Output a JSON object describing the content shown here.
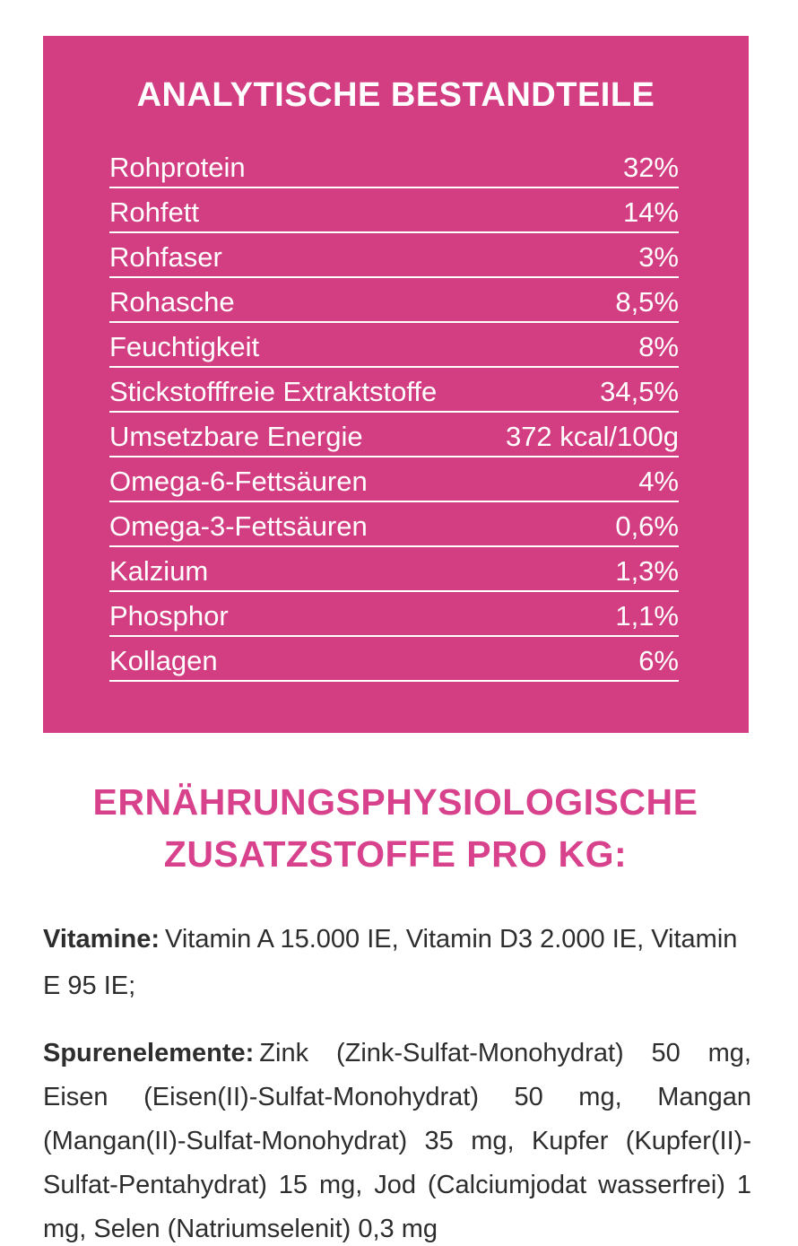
{
  "colors": {
    "panel_background": "#d23e81",
    "panel_text": "#ffffff",
    "heading_text": "#d8428c",
    "body_text": "#2d2d2d",
    "page_background": "#ffffff"
  },
  "analytical_panel": {
    "title": "ANALYTISCHE BESTANDTEILE",
    "rows": [
      {
        "label": "Rohprotein",
        "value": "32%"
      },
      {
        "label": "Rohfett",
        "value": "14%"
      },
      {
        "label": "Rohfaser",
        "value": "3%"
      },
      {
        "label": "Rohasche",
        "value": "8,5%"
      },
      {
        "label": "Feuchtigkeit",
        "value": "8%"
      },
      {
        "label": "Stickstofffreie Extraktstoffe",
        "value": "34,5%"
      },
      {
        "label": "Umsetzbare Energie",
        "value": "372 kcal/100g"
      },
      {
        "label": "Omega-6-Fettsäuren",
        "value": "4%"
      },
      {
        "label": "Omega-3-Fettsäuren",
        "value": "0,6%"
      },
      {
        "label": "Kalzium",
        "value": "1,3%"
      },
      {
        "label": "Phosphor",
        "value": "1,1%"
      },
      {
        "label": "Kollagen",
        "value": "6%"
      }
    ]
  },
  "additives_section": {
    "heading_lines": [
      "ERNÄHRUNGSPHYSIOLOGISCHE",
      "ZUSATZSTOFFE PRO KG:"
    ],
    "vitamins": {
      "label": "Vitamine:",
      "text": "Vitamin A 15.000 IE, Vitamin D3 2.000 IE, Vitamin E 95 IE;"
    },
    "trace_elements": {
      "label": "Spurenelemente:",
      "text": "Zink (Zink-Sulfat-Monohydrat) 50 mg, Eisen (Eisen(II)-Sulfat-Monohydrat) 50 mg, Mangan (Mangan(II)-Sulfat-Monohydrat) 35 mg, Kupfer (Kupfer(II)-Sulfat-Pentahydrat) 15 mg, Jod (Calciumjodat wasserfrei) 1 mg, Selen (Natriumselenit) 0,3 mg"
    }
  }
}
